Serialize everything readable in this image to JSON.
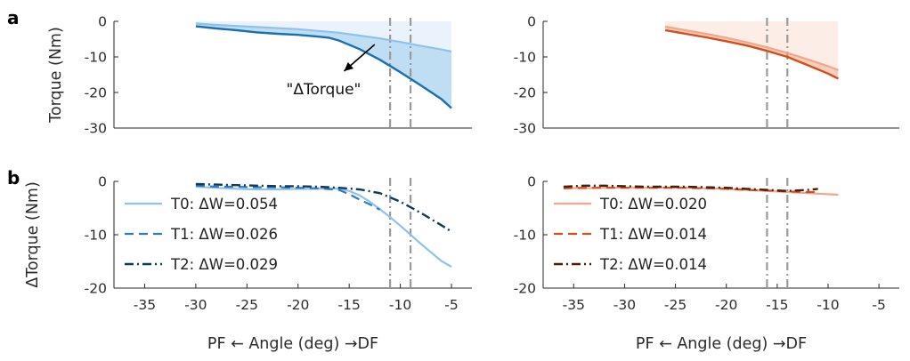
{
  "panel_letters": [
    "a",
    "b"
  ],
  "chart_data": [
    {
      "id": "a-left",
      "type": "line",
      "ylabel": "Torque (Nm)",
      "xlim": [
        -38,
        -3
      ],
      "ylim": [
        -30,
        0
      ],
      "yticks": [
        0,
        -10,
        -20,
        -30
      ],
      "show_xticks": false,
      "box": "left-bottom",
      "fill_between": {
        "color": "#b8d9f2",
        "opacity": 0.9
      },
      "background_fill": {
        "color": "#deedfa",
        "opacity": 0.65,
        "top": 0
      },
      "vlines": [
        -11,
        -9
      ],
      "annotation": {
        "text": "\"ΔTorque\"",
        "x": -17.5,
        "y": -19,
        "arrow_from": [
          -12.5,
          -6.5
        ],
        "arrow_to": [
          -15.5,
          -14
        ]
      },
      "series": [
        {
          "color": "#8fc2ea",
          "width": 2.2,
          "dash": "",
          "x": [
            -30,
            -28,
            -26,
            -24,
            -22,
            -20,
            -18,
            -16,
            -14,
            -12,
            -10,
            -8,
            -6,
            -5
          ],
          "y": [
            -0.6,
            -1.0,
            -1.3,
            -1.6,
            -1.9,
            -2.2,
            -2.7,
            -3.2,
            -4.0,
            -4.8,
            -5.8,
            -6.9,
            -7.9,
            -8.5
          ]
        },
        {
          "color": "#1a6fb0",
          "width": 2.4,
          "dash": "",
          "x": [
            -30,
            -28,
            -26,
            -24,
            -22,
            -20,
            -18,
            -17,
            -16,
            -14,
            -12,
            -10,
            -8,
            -6,
            -5
          ],
          "y": [
            -1.4,
            -2.0,
            -2.5,
            -3.1,
            -3.5,
            -3.8,
            -4.3,
            -4.6,
            -5.4,
            -7.8,
            -10.8,
            -14.3,
            -18.0,
            -21.8,
            -24.4
          ]
        }
      ]
    },
    {
      "id": "a-right",
      "type": "line",
      "ylabel": "",
      "xlim": [
        -38,
        -3
      ],
      "ylim": [
        -30,
        0
      ],
      "yticks": [
        0,
        -10,
        -20,
        -30
      ],
      "show_xticks": false,
      "box": "left-bottom",
      "fill_between": {
        "color": "#f6c6b2",
        "opacity": 0.85
      },
      "background_fill": {
        "color": "#fbe5db",
        "opacity": 0.7,
        "top": 0
      },
      "vlines": [
        -16,
        -14
      ],
      "series": [
        {
          "color": "#f0a78b",
          "width": 2.2,
          "dash": "",
          "x": [
            -26,
            -24,
            -22,
            -20,
            -18,
            -16,
            -14,
            -12,
            -10,
            -9
          ],
          "y": [
            -1.5,
            -2.5,
            -3.5,
            -4.6,
            -5.9,
            -7.3,
            -8.9,
            -10.7,
            -12.6,
            -13.7
          ]
        },
        {
          "color": "#d44e1c",
          "width": 2.4,
          "dash": "",
          "x": [
            -26,
            -24,
            -22,
            -20,
            -18,
            -16,
            -14,
            -12,
            -10,
            -9
          ],
          "y": [
            -2.5,
            -3.5,
            -4.5,
            -5.6,
            -6.8,
            -8.3,
            -10.0,
            -12.3,
            -14.7,
            -16.1
          ]
        }
      ]
    },
    {
      "id": "b-left",
      "type": "line",
      "ylabel": "ΔTorque (Nm)",
      "xlabel": "PF ← Angle (deg) →DF",
      "xlim": [
        -38,
        -3
      ],
      "ylim": [
        -20,
        0
      ],
      "yticks": [
        0,
        -10,
        -20
      ],
      "xticks": [
        -35,
        -30,
        -25,
        -20,
        -15,
        -10,
        -5
      ],
      "show_xticks": true,
      "box": "left-bottom",
      "vlines": [
        -11,
        -9
      ],
      "legend": {
        "position": "left"
      },
      "series": [
        {
          "name": "T0: ΔW=0.054",
          "color": "#8fc2ea",
          "width": 2.2,
          "dash": "",
          "x": [
            -30,
            -28,
            -26,
            -24,
            -22,
            -20,
            -18,
            -17,
            -16,
            -15,
            -14,
            -13,
            -12,
            -11,
            -10,
            -9,
            -8,
            -7,
            -6,
            -5
          ],
          "y": [
            -1.0,
            -1.2,
            -1.4,
            -1.5,
            -1.5,
            -1.4,
            -1.4,
            -1.3,
            -1.4,
            -1.8,
            -2.6,
            -3.8,
            -5.2,
            -6.7,
            -8.3,
            -10.0,
            -11.7,
            -13.3,
            -14.9,
            -16.0
          ]
        },
        {
          "name": "T1: ΔW=0.026",
          "color": "#2e7cc0",
          "width": 2.2,
          "dash": "10,6",
          "x": [
            -30,
            -28,
            -26,
            -24,
            -22,
            -20,
            -18,
            -16,
            -15,
            -14,
            -13,
            -12
          ],
          "y": [
            -0.8,
            -1.0,
            -1.0,
            -1.1,
            -1.1,
            -1.2,
            -1.3,
            -1.6,
            -2.4,
            -3.4,
            -4.3,
            -5.3
          ]
        },
        {
          "name": "T2: ΔW=0.029",
          "color": "#0f3a5c",
          "width": 2.4,
          "dash": "10,4,2,4",
          "x": [
            -30,
            -28,
            -26,
            -24,
            -22,
            -20,
            -18,
            -16,
            -14,
            -12,
            -10,
            -8,
            -6,
            -5
          ],
          "y": [
            -0.5,
            -0.6,
            -0.7,
            -0.8,
            -0.9,
            -0.9,
            -1.0,
            -1.2,
            -1.5,
            -2.2,
            -3.8,
            -5.9,
            -8.2,
            -9.4
          ]
        }
      ]
    },
    {
      "id": "b-right",
      "type": "line",
      "ylabel": "",
      "xlabel": "PF ← Angle (deg) →DF",
      "xlim": [
        -38,
        -3
      ],
      "ylim": [
        -20,
        0
      ],
      "yticks": [
        0,
        -10,
        -20
      ],
      "xticks": [
        -35,
        -30,
        -25,
        -20,
        -15,
        -10,
        -5
      ],
      "show_xticks": true,
      "box": "left-bottom",
      "vlines": [
        -16,
        -14
      ],
      "legend": {
        "position": "left"
      },
      "series": [
        {
          "name": "T0: ΔW=0.020",
          "color": "#f0a78b",
          "width": 2.2,
          "dash": "",
          "x": [
            -36,
            -34,
            -32,
            -30,
            -28,
            -26,
            -24,
            -22,
            -20,
            -18,
            -16,
            -14,
            -12,
            -10,
            -9
          ],
          "y": [
            -1.2,
            -1.3,
            -1.2,
            -1.2,
            -1.2,
            -1.2,
            -1.2,
            -1.3,
            -1.4,
            -1.6,
            -1.8,
            -2.0,
            -2.2,
            -2.4,
            -2.5
          ]
        },
        {
          "name": "T1: ΔW=0.014",
          "color": "#d44e1c",
          "width": 2.2,
          "dash": "10,6",
          "x": [
            -36,
            -34,
            -32,
            -30,
            -28,
            -26,
            -24,
            -22,
            -20,
            -18,
            -16,
            -14,
            -12,
            -11
          ],
          "y": [
            -1.3,
            -1.2,
            -1.2,
            -1.2,
            -1.2,
            -1.2,
            -1.2,
            -1.3,
            -1.4,
            -1.6,
            -1.7,
            -1.9,
            -2.0,
            -2.0
          ]
        },
        {
          "name": "T2: ΔW=0.014",
          "color": "#4a1c0a",
          "width": 2.4,
          "dash": "10,4,2,4",
          "x": [
            -36,
            -34,
            -32,
            -30,
            -28,
            -26,
            -24,
            -22,
            -20,
            -18,
            -16,
            -14,
            -12,
            -11
          ],
          "y": [
            -1.0,
            -0.8,
            -0.8,
            -0.9,
            -1.0,
            -1.0,
            -1.0,
            -1.1,
            -1.2,
            -1.4,
            -1.6,
            -1.8,
            -1.6,
            -1.4
          ]
        }
      ]
    }
  ]
}
